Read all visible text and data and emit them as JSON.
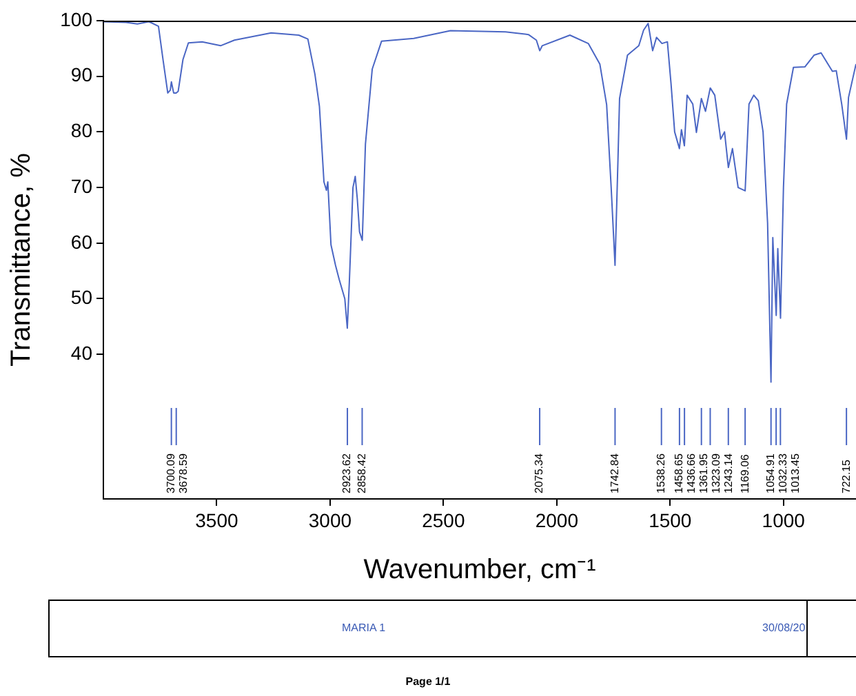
{
  "chart_data": {
    "type": "line",
    "xlabel": "Wavenumber, cm⁻¹",
    "ylabel": "Transmittance, %",
    "x": [
      4000,
      3900,
      3850,
      3800,
      3787,
      3757,
      3737,
      3716,
      3705,
      3700,
      3690,
      3679,
      3670,
      3649,
      3625,
      3564,
      3483,
      3422,
      3260,
      3138,
      3098,
      3067,
      3047,
      3027,
      3016,
      3010,
      2996,
      2976,
      2960,
      2935,
      2924,
      2915,
      2899,
      2889,
      2880,
      2870,
      2858,
      2844,
      2814,
      2773,
      2631,
      2469,
      2226,
      2125,
      2090,
      2075,
      2064,
      1942,
      1861,
      1810,
      1780,
      1760,
      1743,
      1730,
      1723,
      1688,
      1638,
      1617,
      1597,
      1577,
      1560,
      1536,
      1512,
      1496,
      1480,
      1459,
      1450,
      1437,
      1425,
      1400,
      1384,
      1362,
      1344,
      1323,
      1303,
      1277,
      1260,
      1243,
      1225,
      1200,
      1169,
      1152,
      1131,
      1111,
      1090,
      1070,
      1055,
      1047,
      1032,
      1025,
      1013,
      1000,
      986,
      956,
      905,
      865,
      834,
      784,
      767,
      743,
      722,
      713,
      680
    ],
    "series": [
      {
        "color": "#4a66c4",
        "values": [
          99.8,
          99.7,
          99.4,
          99.8,
          99.6,
          99,
          93,
          87,
          87.5,
          89,
          87,
          87,
          87.3,
          93,
          96,
          96.2,
          95.5,
          96.5,
          97.8,
          97.4,
          96.7,
          90.4,
          84.6,
          71,
          69.5,
          71,
          59.7,
          56,
          53.5,
          50,
          44.7,
          53,
          70,
          72,
          68,
          62,
          60.5,
          77.8,
          91.3,
          96.3,
          96.8,
          98.2,
          98,
          97.5,
          96.5,
          94.6,
          95.5,
          97.4,
          95.9,
          92.2,
          84.9,
          70,
          56,
          75,
          86,
          93.8,
          95.5,
          98.3,
          99.5,
          94.6,
          97,
          95.9,
          96.2,
          88.7,
          80,
          77,
          80.4,
          77.5,
          86.6,
          85,
          79.9,
          86,
          83.7,
          87.9,
          86.6,
          78.7,
          80,
          73.6,
          77,
          70,
          69.4,
          85,
          86.6,
          85.6,
          80,
          63.6,
          35,
          61,
          47,
          59,
          46.5,
          70,
          85,
          91.6,
          91.7,
          93.8,
          94.2,
          90.9,
          91,
          85,
          78.7,
          86.2,
          92.2
        ]
      }
    ],
    "xlim": [
      4000,
      680
    ],
    "xticks": [
      3500,
      3000,
      2500,
      2000,
      1500,
      1000
    ],
    "ylim": [
      14,
      100
    ],
    "yticks": [
      40,
      50,
      60,
      70,
      80,
      90,
      100
    ],
    "grid": false,
    "legend": false,
    "marker": "none",
    "line_style": "solid",
    "ref_lines": [
      {
        "axis": "x",
        "value": 3700.09,
        "label": "3700.09"
      },
      {
        "axis": "x",
        "value": 3678.59,
        "label": "3678.59"
      },
      {
        "axis": "x",
        "value": 2923.62,
        "label": "2923.62"
      },
      {
        "axis": "x",
        "value": 2858.42,
        "label": "2858.42"
      },
      {
        "axis": "x",
        "value": 2075.34,
        "label": "2075.34"
      },
      {
        "axis": "x",
        "value": 1742.84,
        "label": "1742.84"
      },
      {
        "axis": "x",
        "value": 1538.26,
        "label": "1538.26"
      },
      {
        "axis": "x",
        "value": 1458.65,
        "label": "1458.65"
      },
      {
        "axis": "x",
        "value": 1436.66,
        "label": "1436.66"
      },
      {
        "axis": "x",
        "value": 1361.95,
        "label": "1361.95"
      },
      {
        "axis": "x",
        "value": 1323.09,
        "label": "1323.09"
      },
      {
        "axis": "x",
        "value": 1243.14,
        "label": "1243.14"
      },
      {
        "axis": "x",
        "value": 1169.06,
        "label": "1169.06"
      },
      {
        "axis": "x",
        "value": 1054.91,
        "label": "1054.91"
      },
      {
        "axis": "x",
        "value": 1032.33,
        "label": "1032.33"
      },
      {
        "axis": "x",
        "value": 1013.45,
        "label": "1013.45"
      },
      {
        "axis": "x",
        "value": 722.15,
        "label": "722.15"
      }
    ],
    "annotations": [
      "MARIA 1",
      "30/08/20",
      "Page 1/1"
    ]
  }
}
